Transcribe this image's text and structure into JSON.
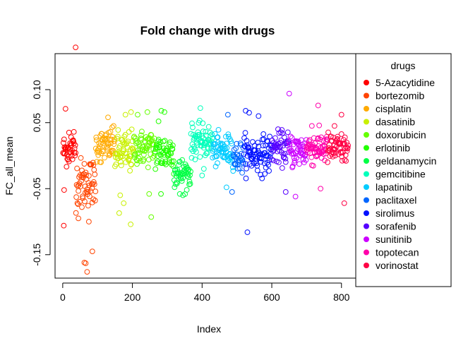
{
  "chart_data": {
    "type": "scatter",
    "title": "Fold change with drugs",
    "xlabel": "Index",
    "ylabel": "FC_all_mean",
    "xlim": [
      -22,
      841
    ],
    "ylim": [
      -0.1855,
      0.1545
    ],
    "x_ticks": [
      0,
      200,
      400,
      600,
      800
    ],
    "x_tick_labels": [
      "0",
      "200",
      "400",
      "600",
      "800"
    ],
    "y_ticks": [
      -0.15,
      -0.05,
      0.05,
      0.1
    ],
    "y_tick_labels": [
      "-0.15",
      "-0.05",
      "0.05",
      "0.10"
    ],
    "marker": "open-circle",
    "legend": {
      "title": "drugs",
      "placement": "right"
    },
    "series": [
      {
        "name": "5-Azacytidine",
        "color": "#FF0000",
        "x_range": [
          1,
          38
        ],
        "center": 0.008,
        "spread": 0.012,
        "extras": [
          {
            "x": 37,
            "y": 0.164
          },
          {
            "x": 8,
            "y": 0.071
          },
          {
            "x": 4,
            "y": -0.052
          },
          {
            "x": 3,
            "y": -0.106
          },
          {
            "x": 18,
            "y": 0.035
          },
          {
            "x": 24,
            "y": 0.028
          },
          {
            "x": 32,
            "y": 0.036
          }
        ]
      },
      {
        "name": "bortezomib",
        "color": "#FF4400",
        "x_range": [
          38,
          95
        ],
        "center": -0.04,
        "spread": 0.018,
        "extras": [
          {
            "x": 62,
            "y": -0.162
          },
          {
            "x": 66,
            "y": -0.163
          },
          {
            "x": 70,
            "y": -0.176
          },
          {
            "x": 85,
            "y": -0.145
          },
          {
            "x": 45,
            "y": -0.095
          },
          {
            "x": 55,
            "y": -0.078
          },
          {
            "x": 88,
            "y": -0.066
          },
          {
            "x": 75,
            "y": -0.1
          }
        ]
      },
      {
        "name": "cisplatin",
        "color": "#FFAA00",
        "x_range": [
          95,
          150
        ],
        "center": 0.015,
        "spread": 0.012,
        "extras": [
          {
            "x": 130,
            "y": 0.058
          },
          {
            "x": 142,
            "y": 0.043
          },
          {
            "x": 110,
            "y": -0.01
          }
        ]
      },
      {
        "name": "dasatinib",
        "color": "#C8F000",
        "x_range": [
          150,
          205
        ],
        "center": 0.005,
        "spread": 0.016,
        "extras": [
          {
            "x": 162,
            "y": -0.087
          },
          {
            "x": 175,
            "y": -0.072
          },
          {
            "x": 195,
            "y": -0.104
          },
          {
            "x": 180,
            "y": 0.062
          },
          {
            "x": 196,
            "y": 0.066
          },
          {
            "x": 165,
            "y": -0.06
          }
        ]
      },
      {
        "name": "doxorubicin",
        "color": "#66FF00",
        "x_range": [
          205,
          265
        ],
        "center": 0.012,
        "spread": 0.013,
        "extras": [
          {
            "x": 243,
            "y": 0.066
          },
          {
            "x": 215,
            "y": 0.062
          },
          {
            "x": 254,
            "y": -0.093
          },
          {
            "x": 248,
            "y": -0.058
          }
        ]
      },
      {
        "name": "erlotinib",
        "color": "#22FF00",
        "x_range": [
          265,
          320
        ],
        "center": 0.005,
        "spread": 0.015,
        "extras": [
          {
            "x": 283,
            "y": 0.068
          },
          {
            "x": 292,
            "y": 0.066
          },
          {
            "x": 282,
            "y": -0.058
          },
          {
            "x": 275,
            "y": 0.052
          }
        ]
      },
      {
        "name": "geldanamycin",
        "color": "#00FF44",
        "x_range": [
          320,
          368
        ],
        "center": -0.027,
        "spread": 0.012,
        "extras": [
          {
            "x": 336,
            "y": -0.058
          },
          {
            "x": 345,
            "y": -0.06
          }
        ]
      },
      {
        "name": "gemcitibine",
        "color": "#00FFBB",
        "x_range": [
          368,
          430
        ],
        "center": 0.022,
        "spread": 0.012,
        "extras": [
          {
            "x": 395,
            "y": 0.072
          },
          {
            "x": 400,
            "y": -0.03
          },
          {
            "x": 405,
            "y": -0.02
          }
        ]
      },
      {
        "name": "lapatinib",
        "color": "#00CCFF",
        "x_range": [
          430,
          490
        ],
        "center": 0.008,
        "spread": 0.012,
        "extras": [
          {
            "x": 470,
            "y": -0.048
          },
          {
            "x": 480,
            "y": 0.025
          }
        ]
      },
      {
        "name": "paclitaxel",
        "color": "#0066FF",
        "x_range": [
          490,
          520
        ],
        "center": -0.002,
        "spread": 0.012,
        "extras": [
          {
            "x": 474,
            "y": 0.062
          },
          {
            "x": 486,
            "y": -0.055
          }
        ]
      },
      {
        "name": "sirolimus",
        "color": "#0011FF",
        "x_range": [
          520,
          600
        ],
        "center": 0.002,
        "spread": 0.014,
        "extras": [
          {
            "x": 525,
            "y": 0.068
          },
          {
            "x": 535,
            "y": 0.065
          },
          {
            "x": 562,
            "y": 0.06
          },
          {
            "x": 530,
            "y": -0.116
          }
        ]
      },
      {
        "name": "sorafenib",
        "color": "#5500FF",
        "x_range": [
          600,
          650
        ],
        "center": 0.012,
        "spread": 0.012,
        "extras": [
          {
            "x": 640,
            "y": -0.055
          }
        ]
      },
      {
        "name": "sunitinib",
        "color": "#CC00FF",
        "x_range": [
          650,
          700
        ],
        "center": 0.008,
        "spread": 0.013,
        "extras": [
          {
            "x": 650,
            "y": 0.094
          },
          {
            "x": 668,
            "y": -0.062
          }
        ]
      },
      {
        "name": "topotecan",
        "color": "#FF00AA",
        "x_range": [
          700,
          760
        ],
        "center": 0.012,
        "spread": 0.013,
        "extras": [
          {
            "x": 733,
            "y": 0.076
          },
          {
            "x": 715,
            "y": 0.045
          },
          {
            "x": 740,
            "y": -0.05
          }
        ]
      },
      {
        "name": "vorinostat",
        "color": "#FF0044",
        "x_range": [
          760,
          820
        ],
        "center": 0.01,
        "spread": 0.012,
        "extras": [
          {
            "x": 800,
            "y": 0.062
          },
          {
            "x": 808,
            "y": -0.072
          },
          {
            "x": 780,
            "y": 0.045
          }
        ]
      }
    ]
  }
}
